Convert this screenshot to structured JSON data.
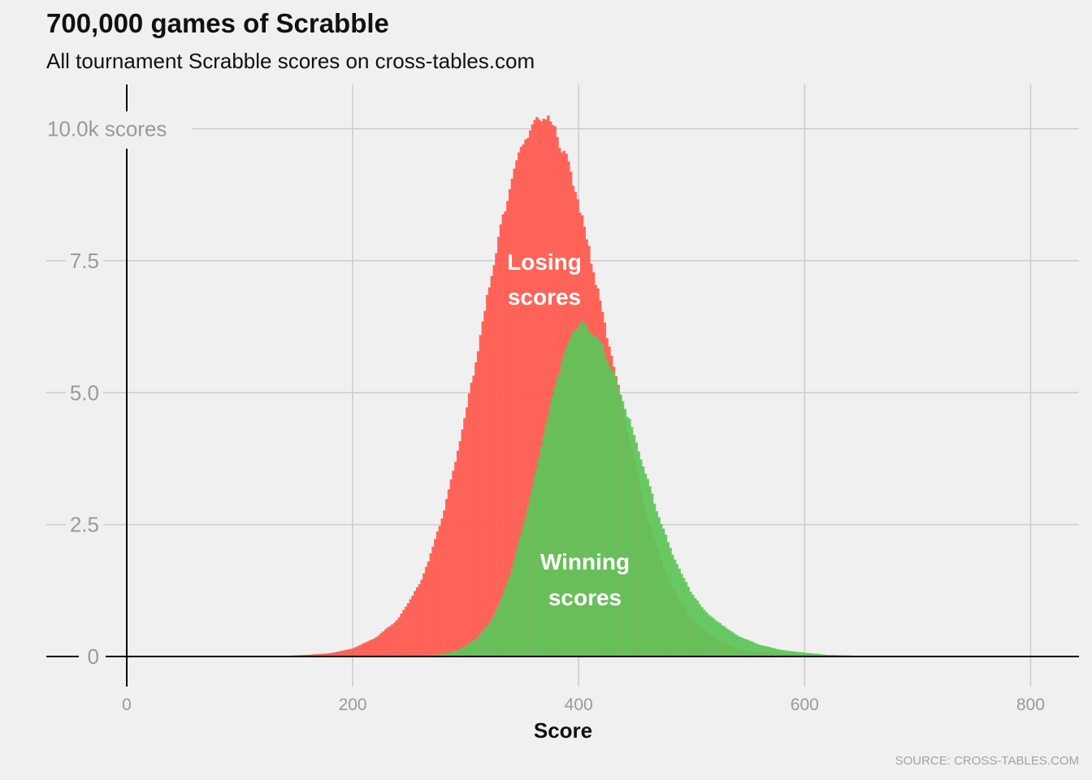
{
  "title": "700,000 games of Scrabble",
  "subtitle": "All tournament Scrabble scores on cross-tables.com",
  "source": "SOURCE: CROSS-TABLES.COM",
  "colors": {
    "background": "#f0f0f0",
    "grid": "#cccccc",
    "axis": "#000000",
    "losing": "#ff5a4e",
    "winning": "#5fc45a"
  },
  "chart_data": {
    "type": "area",
    "chart_kind": "histogram (overlapping)",
    "xlabel": "Score",
    "ylabel": "",
    "xlim": [
      0,
      850
    ],
    "ylim": [
      -0.3,
      10.6
    ],
    "y_unit": "thousand scores",
    "xticks": [
      {
        "value": 0,
        "label": "0"
      },
      {
        "value": 200,
        "label": "200"
      },
      {
        "value": 400,
        "label": "400"
      },
      {
        "value": 600,
        "label": "600"
      },
      {
        "value": 800,
        "label": "800"
      }
    ],
    "yticks": [
      {
        "value": 0,
        "label": "0"
      },
      {
        "value": 2.5,
        "label": "2.5"
      },
      {
        "value": 5,
        "label": "5.0"
      },
      {
        "value": 7.5,
        "label": "7.5"
      },
      {
        "value": 10,
        "label": "10.0k scores"
      }
    ],
    "grid": true,
    "legend": "none (series labelled directly on chart)",
    "series": [
      {
        "name": "Losing scores",
        "label_lines": [
          "Losing",
          "scores"
        ],
        "color": "#ff5a4e",
        "x": [
          100,
          140,
          160,
          180,
          200,
          220,
          240,
          260,
          270,
          280,
          290,
          300,
          310,
          320,
          330,
          340,
          350,
          360,
          365,
          370,
          375,
          380,
          390,
          400,
          410,
          420,
          430,
          440,
          450,
          460,
          470,
          480,
          500,
          520,
          540,
          560,
          600,
          650
        ],
        "values": [
          0,
          0.01,
          0.03,
          0.06,
          0.15,
          0.35,
          0.7,
          1.4,
          2.0,
          2.7,
          3.6,
          4.6,
          5.7,
          6.9,
          8.0,
          9.0,
          9.7,
          10.1,
          10.2,
          10.2,
          10.1,
          9.9,
          9.4,
          8.6,
          7.6,
          6.6,
          5.6,
          4.6,
          3.6,
          2.7,
          2.0,
          1.4,
          0.7,
          0.35,
          0.15,
          0.07,
          0.02,
          0
        ]
      },
      {
        "name": "Winning scores",
        "label_lines": [
          "Winning",
          "scores"
        ],
        "color": "#5fc45a",
        "x": [
          250,
          270,
          280,
          290,
          300,
          310,
          320,
          330,
          340,
          350,
          360,
          370,
          380,
          390,
          395,
          400,
          405,
          410,
          420,
          430,
          440,
          450,
          460,
          470,
          480,
          490,
          500,
          510,
          520,
          540,
          560,
          580,
          600,
          620,
          650,
          700
        ],
        "values": [
          0,
          0.02,
          0.05,
          0.1,
          0.2,
          0.35,
          0.6,
          1.0,
          1.6,
          2.4,
          3.3,
          4.3,
          5.2,
          5.9,
          6.2,
          6.3,
          6.3,
          6.2,
          5.9,
          5.4,
          4.8,
          4.1,
          3.4,
          2.7,
          2.1,
          1.6,
          1.2,
          0.9,
          0.7,
          0.4,
          0.22,
          0.12,
          0.07,
          0.03,
          0.01,
          0
        ]
      }
    ]
  }
}
